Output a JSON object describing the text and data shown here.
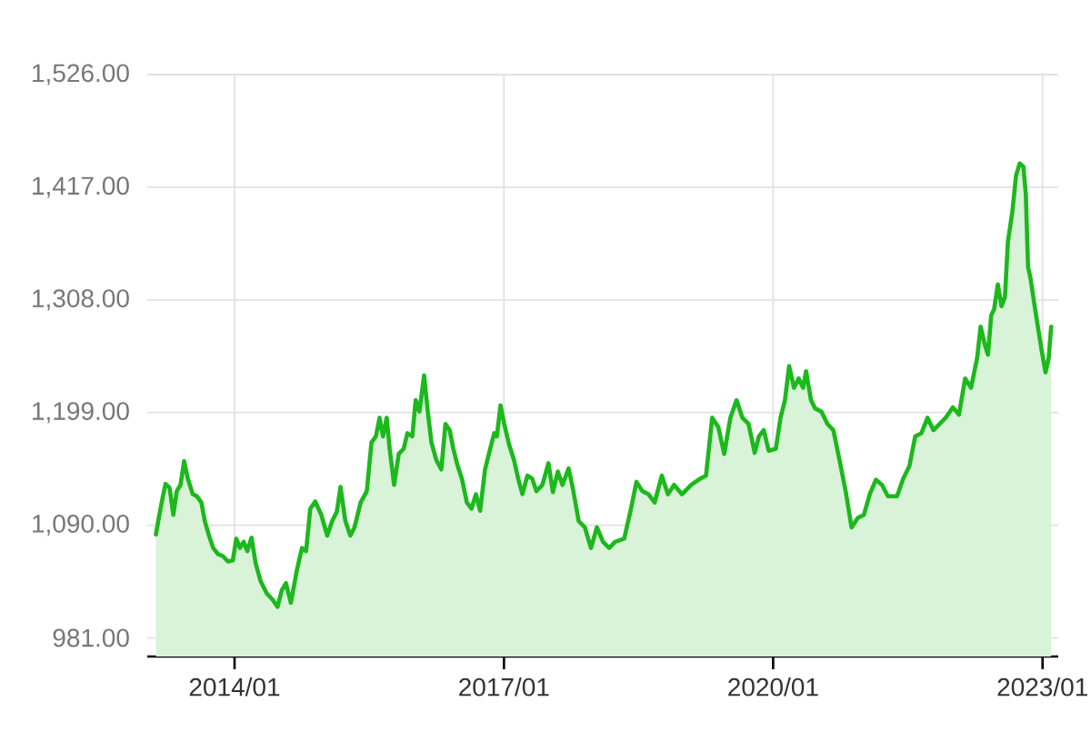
{
  "chart_data": {
    "type": "area",
    "color": "#1cb81c",
    "x": [
      "2013-02-15",
      "2013-03-01",
      "2013-03-13",
      "2013-03-26",
      "2013-04-12",
      "2013-04-27",
      "2013-05-11",
      "2013-05-26",
      "2013-06-10",
      "2013-06-25",
      "2013-07-15",
      "2013-08-01",
      "2013-08-19",
      "2013-09-02",
      "2013-09-19",
      "2013-10-06",
      "2013-10-26",
      "2013-11-15",
      "2013-12-05",
      "2013-12-25",
      "2014-01-08",
      "2014-01-23",
      "2014-02-07",
      "2014-02-22",
      "2014-03-11",
      "2014-03-28",
      "2014-04-17",
      "2014-05-12",
      "2014-06-05",
      "2014-06-25",
      "2014-07-12",
      "2014-07-29",
      "2014-08-18",
      "2014-09-12",
      "2014-10-02",
      "2014-10-19",
      "2014-11-05",
      "2014-11-25",
      "2014-12-20",
      "2015-01-13",
      "2015-02-02",
      "2015-02-21",
      "2015-03-08",
      "2015-03-28",
      "2015-04-17",
      "2015-05-04",
      "2015-05-29",
      "2015-06-23",
      "2015-07-12",
      "2015-07-30",
      "2015-08-14",
      "2015-08-28",
      "2015-09-12",
      "2015-09-24",
      "2015-10-12",
      "2015-10-31",
      "2015-11-20",
      "2015-12-05",
      "2015-12-25",
      "2016-01-08",
      "2016-01-23",
      "2016-02-11",
      "2016-02-26",
      "2016-03-12",
      "2016-04-01",
      "2016-04-21",
      "2016-05-08",
      "2016-05-25",
      "2016-06-09",
      "2016-06-27",
      "2016-07-14",
      "2016-08-03",
      "2016-08-22",
      "2016-09-09",
      "2016-09-26",
      "2016-10-16",
      "2016-11-04",
      "2016-11-22",
      "2016-12-03",
      "2016-12-18",
      "2017-01-02",
      "2017-01-22",
      "2017-02-11",
      "2017-02-28",
      "2017-03-17",
      "2017-04-06",
      "2017-04-26",
      "2017-05-13",
      "2017-06-06",
      "2017-07-01",
      "2017-07-19",
      "2017-08-08",
      "2017-08-27",
      "2017-09-21",
      "2017-10-08",
      "2017-11-01",
      "2017-11-26",
      "2017-12-21",
      "2018-01-14",
      "2018-02-08",
      "2018-03-05",
      "2018-03-29",
      "2018-05-05",
      "2018-05-30",
      "2018-06-24",
      "2018-07-18",
      "2018-08-12",
      "2018-09-06",
      "2018-10-05",
      "2018-10-30",
      "2018-11-24",
      "2018-12-26",
      "2019-02-01",
      "2019-03-10",
      "2019-04-03",
      "2019-04-28",
      "2019-05-23",
      "2019-06-16",
      "2019-07-11",
      "2019-08-05",
      "2019-08-29",
      "2019-09-23",
      "2019-10-18",
      "2019-11-04",
      "2019-11-24",
      "2019-12-14",
      "2020-01-12",
      "2020-01-31",
      "2020-02-18",
      "2020-03-06",
      "2020-03-26",
      "2020-04-14",
      "2020-05-02",
      "2020-05-14",
      "2020-06-03",
      "2020-06-20",
      "2020-07-15",
      "2020-08-09",
      "2020-09-02",
      "2020-09-27",
      "2020-10-22",
      "2020-11-15",
      "2020-12-10",
      "2021-01-04",
      "2021-01-28",
      "2021-02-22",
      "2021-03-19",
      "2021-04-12",
      "2021-05-19",
      "2021-06-13",
      "2021-07-08",
      "2021-08-01",
      "2021-08-26",
      "2021-09-20",
      "2021-10-14",
      "2021-11-08",
      "2021-12-03",
      "2022-01-01",
      "2022-01-26",
      "2022-02-20",
      "2022-03-16",
      "2022-04-10",
      "2022-04-24",
      "2022-05-12",
      "2022-05-24",
      "2022-06-06",
      "2022-06-18",
      "2022-07-03",
      "2022-07-18",
      "2022-08-01",
      "2022-08-13",
      "2022-08-31",
      "2022-09-15",
      "2022-09-30",
      "2022-10-15",
      "2022-10-25",
      "2022-11-03",
      "2022-11-13",
      "2022-11-28",
      "2022-12-13",
      "2022-12-27",
      "2023-01-13",
      "2023-01-26",
      "2023-02-05"
    ],
    "values": [
      1081,
      1100,
      1115,
      1130,
      1126,
      1100,
      1123,
      1129,
      1152,
      1135,
      1120,
      1118,
      1112,
      1094,
      1080,
      1068,
      1062,
      1060,
      1055,
      1056,
      1077,
      1068,
      1074,
      1065,
      1078,
      1053,
      1036,
      1024,
      1018,
      1011,
      1027,
      1034,
      1015,
      1047,
      1068,
      1065,
      1106,
      1113,
      1100,
      1080,
      1094,
      1103,
      1127,
      1094,
      1080,
      1088,
      1112,
      1123,
      1170,
      1176,
      1194,
      1176,
      1194,
      1164,
      1129,
      1159,
      1164,
      1179,
      1176,
      1211,
      1200,
      1235,
      1200,
      1170,
      1153,
      1144,
      1188,
      1182,
      1164,
      1147,
      1135,
      1112,
      1106,
      1120,
      1104,
      1144,
      1162,
      1179,
      1176,
      1206,
      1188,
      1168,
      1153,
      1135,
      1120,
      1138,
      1135,
      1123,
      1129,
      1150,
      1122,
      1142,
      1129,
      1145,
      1126,
      1094,
      1088,
      1068,
      1088,
      1074,
      1068,
      1074,
      1077,
      1103,
      1132,
      1123,
      1120,
      1112,
      1138,
      1120,
      1129,
      1120,
      1129,
      1135,
      1138,
      1194,
      1185,
      1159,
      1194,
      1211,
      1194,
      1188,
      1160,
      1176,
      1182,
      1162,
      1164,
      1194,
      1211,
      1244,
      1223,
      1232,
      1223,
      1239,
      1211,
      1203,
      1200,
      1188,
      1182,
      1153,
      1123,
      1088,
      1097,
      1100,
      1120,
      1134,
      1129,
      1118,
      1118,
      1135,
      1147,
      1176,
      1179,
      1194,
      1182,
      1188,
      1194,
      1204,
      1197,
      1232,
      1223,
      1252,
      1282,
      1264,
      1255,
      1293,
      1299,
      1323,
      1302,
      1311,
      1364,
      1393,
      1428,
      1440,
      1437,
      1410,
      1340,
      1329,
      1305,
      1282,
      1261,
      1238,
      1252,
      1282
    ],
    "xlim": [
      "2013-01-11",
      "2023-03-06"
    ],
    "ylim": [
      963,
      1526
    ],
    "xticks": [
      {
        "value": "2014-01-01",
        "label": "2014/01"
      },
      {
        "value": "2017-01-01",
        "label": "2017/01"
      },
      {
        "value": "2020-01-01",
        "label": "2020/01"
      },
      {
        "value": "2023-01-01",
        "label": "2023/01"
      }
    ],
    "yticks": [
      {
        "value": 981,
        "label": "981.00"
      },
      {
        "value": 1090,
        "label": "1,090.00"
      },
      {
        "value": 1199,
        "label": "1,199.00"
      },
      {
        "value": 1308,
        "label": "1,308.00"
      },
      {
        "value": 1417,
        "label": "1,417.00"
      },
      {
        "value": 1526,
        "label": "1,526.00"
      }
    ],
    "grid": true
  }
}
